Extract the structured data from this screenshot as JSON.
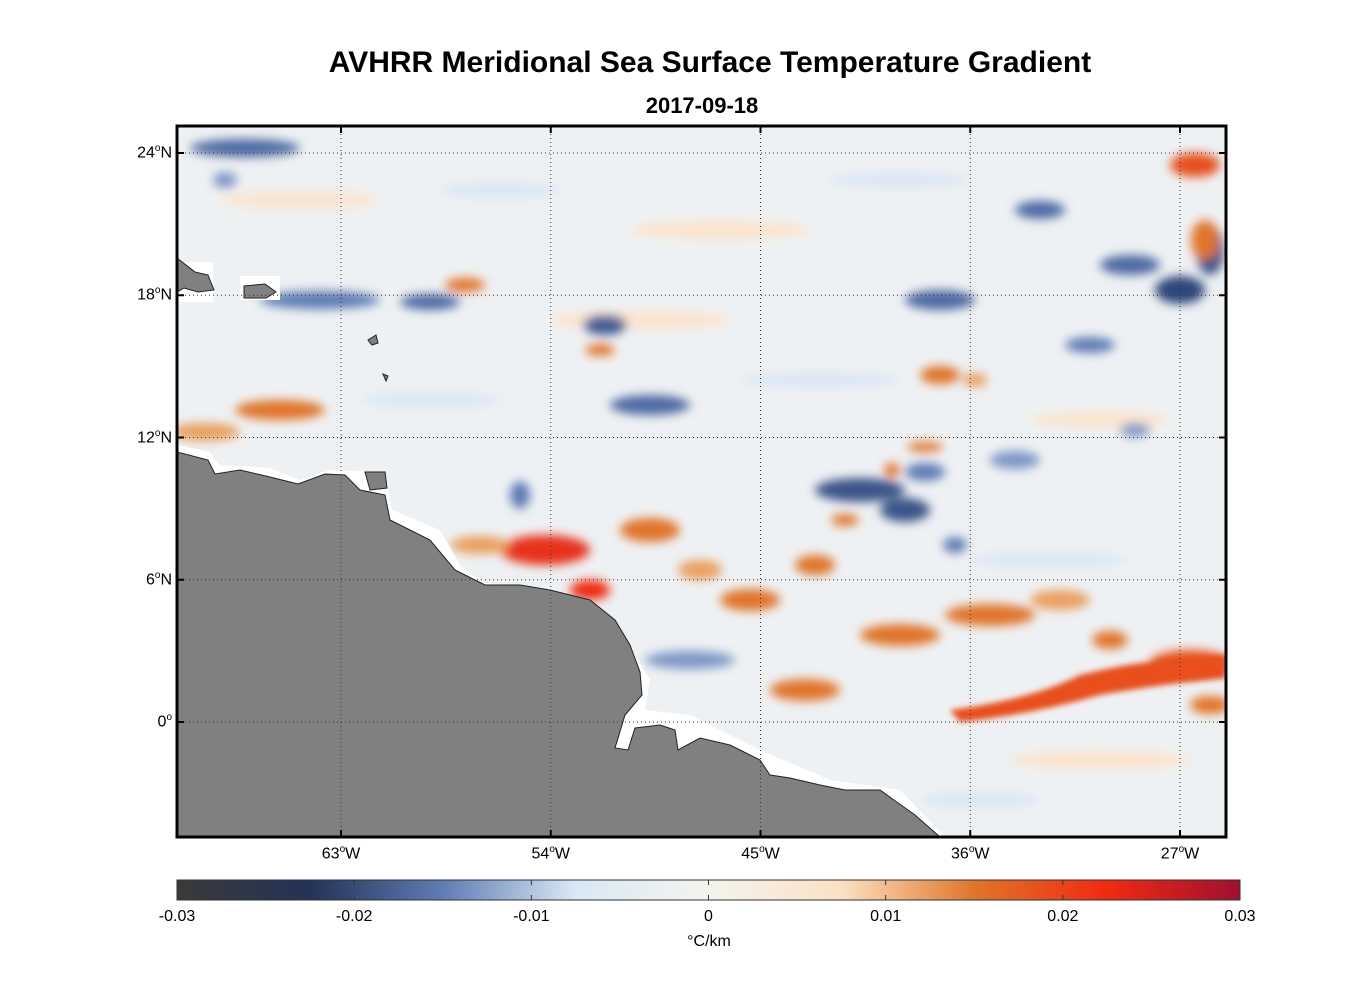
{
  "title": "AVHRR Meridional Sea Surface Temperature Gradient",
  "subtitle": "2017-09-18",
  "map": {
    "lat_ticks": [
      {
        "value": 24,
        "deg": "24",
        "suffix": "N"
      },
      {
        "value": 18,
        "deg": "18",
        "suffix": "N"
      },
      {
        "value": 12,
        "deg": "12",
        "suffix": "N"
      },
      {
        "value": 6,
        "deg": "6",
        "suffix": "N"
      },
      {
        "value": 0,
        "deg": "0",
        "suffix": ""
      }
    ],
    "lon_ticks": [
      {
        "value": -63,
        "deg": "63",
        "suffix": "W"
      },
      {
        "value": -54,
        "deg": "54",
        "suffix": "W"
      },
      {
        "value": -45,
        "deg": "45",
        "suffix": "W"
      },
      {
        "value": -36,
        "deg": "36",
        "suffix": "W"
      },
      {
        "value": -27,
        "deg": "27",
        "suffix": "W"
      }
    ],
    "lon_range": [
      -70,
      -25
    ],
    "lat_range": [
      -5,
      25
    ],
    "grid": "dotted",
    "land_color": "#808080",
    "missing_color": "#ffffff"
  },
  "colorbar": {
    "ticks": [
      "-0.03",
      "-0.02",
      "-0.01",
      "0",
      "0.01",
      "0.02",
      "0.03"
    ],
    "units": "°C/km",
    "range": [
      -0.03,
      0.03
    ],
    "stops": [
      "#3a3a3a",
      "#233257",
      "#5f7db5",
      "#d9e8f5",
      "#f4f4ee",
      "#fbe1c3",
      "#e0752a",
      "#f02a10",
      "#a01030"
    ]
  }
}
